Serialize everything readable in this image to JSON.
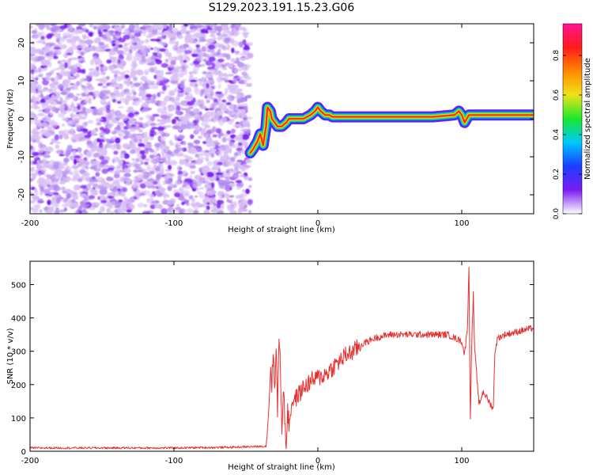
{
  "title": "S129.2023.191.15.23.G06",
  "colors": {
    "snr_line": "#e8302e",
    "axis": "#000000",
    "spec_light": "#d9bff5",
    "spec_mid": "#b58cf0",
    "spec_dark": "#7a1cf2",
    "spec_band": [
      "#7a1cf2",
      "#1c3cff",
      "#00c8ff",
      "#18e82a",
      "#f0e21a",
      "#ff8a00",
      "#ff1a1a"
    ]
  },
  "colorbar": {
    "label": "Normalized spectral amplitude",
    "ticks": [
      "0.0",
      "0.2",
      "0.4",
      "0.6",
      "0.8"
    ],
    "stops": [
      "#ffffff",
      "#7a1cf2",
      "#1c3cff",
      "#00c8ff",
      "#18e82a",
      "#f0e21a",
      "#ff8a00",
      "#ff1a1a",
      "#ff1493"
    ]
  },
  "chart_data": [
    {
      "type": "heatmap",
      "title": "S129.2023.191.15.23.G06",
      "xlabel": "Height of straight line (km)",
      "ylabel": "Frequency (Hz)",
      "xlim": [
        -200,
        150
      ],
      "ylim": [
        -25,
        25
      ],
      "xticks": [
        -200,
        -100,
        0,
        100
      ],
      "xtick_labels": [
        "-200",
        "-100",
        "0",
        "100"
      ],
      "yticks": [
        -20,
        -10,
        0,
        10,
        20
      ],
      "ytick_labels": [
        "-20",
        "-10",
        "0",
        "10",
        "20"
      ],
      "noise_region_x": [
        -200,
        -47
      ],
      "dominant_frequency_trace": {
        "x": [
          -47,
          -45,
          -42,
          -40,
          -38,
          -36,
          -35,
          -33,
          -32,
          -30,
          -28,
          -25,
          -22,
          -20,
          -18,
          -15,
          -10,
          -5,
          -2,
          0,
          2,
          5,
          8,
          10,
          20,
          40,
          60,
          80,
          95,
          98,
          100,
          102,
          105,
          110,
          120,
          130,
          140,
          150
        ],
        "y": [
          -9,
          -8,
          -6,
          -4,
          -7,
          -2,
          3,
          2,
          0,
          -1,
          -2,
          -2,
          -1,
          0,
          0,
          0,
          0,
          1,
          2,
          3,
          2,
          1,
          1,
          0.5,
          0.5,
          0.5,
          0.5,
          0.5,
          1,
          2,
          1,
          -1,
          1,
          1,
          1,
          1,
          1,
          1
        ]
      }
    },
    {
      "type": "line",
      "xlabel": "Height of straight line (km)",
      "ylabel": "SNR (10 * v/v)",
      "xlim": [
        -200,
        150
      ],
      "ylim": [
        0,
        570
      ],
      "xticks": [
        -200,
        -100,
        0,
        100
      ],
      "xtick_labels": [
        "-200",
        "-100",
        "0",
        "100"
      ],
      "yticks": [
        0,
        100,
        200,
        300,
        400,
        500
      ],
      "ytick_labels": [
        "0",
        "100",
        "200",
        "300",
        "400",
        "500"
      ],
      "series": [
        {
          "x": [
            -200,
            -150,
            -100,
            -60,
            -36,
            -34,
            -33,
            -32,
            -31,
            -30,
            -29,
            -28,
            -27,
            -26,
            -25,
            -24,
            -23,
            -22,
            -21,
            -20,
            -18,
            -15,
            -10,
            -5,
            0,
            5,
            10,
            15,
            20,
            25,
            30,
            35,
            40,
            50,
            60,
            70,
            80,
            90,
            95,
            100,
            102,
            104,
            105,
            106,
            107,
            108,
            109,
            110,
            112,
            115,
            120,
            122,
            123,
            125,
            130,
            140,
            150
          ],
          "y": [
            10,
            10,
            10,
            12,
            15,
            130,
            250,
            200,
            300,
            180,
            330,
            120,
            340,
            250,
            60,
            200,
            100,
            10,
            120,
            80,
            150,
            160,
            190,
            210,
            220,
            230,
            250,
            270,
            290,
            300,
            320,
            330,
            340,
            350,
            350,
            350,
            350,
            350,
            340,
            330,
            290,
            380,
            550,
            100,
            330,
            470,
            300,
            250,
            140,
            180,
            140,
            130,
            300,
            340,
            350,
            360,
            370
          ]
        }
      ]
    }
  ]
}
